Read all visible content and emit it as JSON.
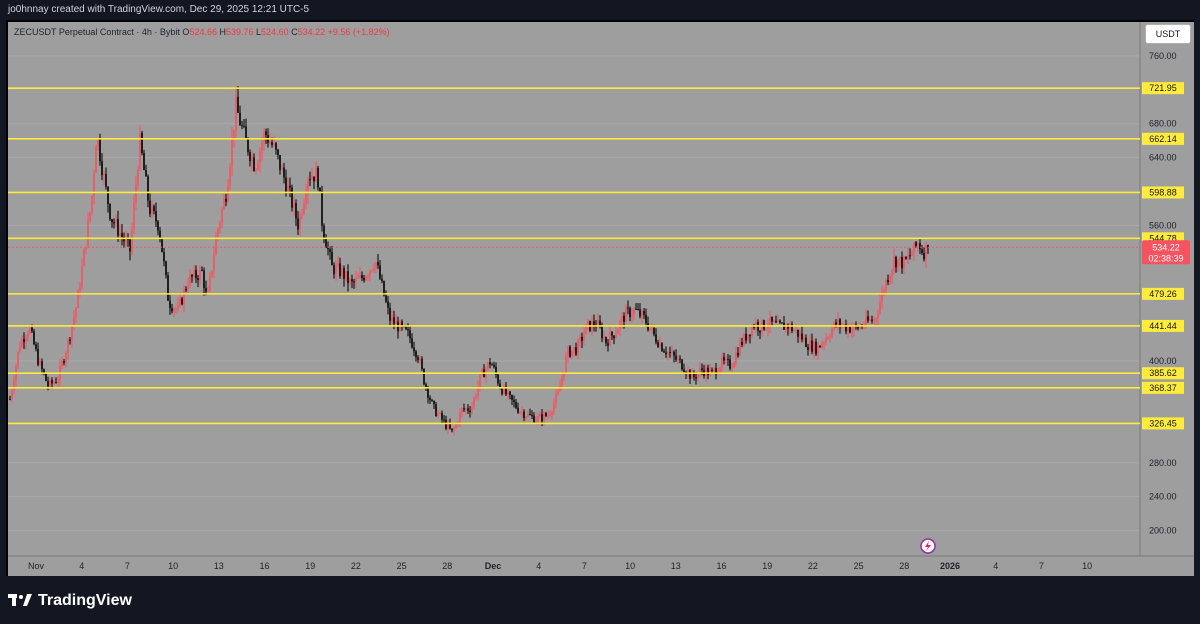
{
  "credit": "jo0hnnay created with TradingView.com, Dec 29, 2025 12:21 UTC-5",
  "legend": {
    "symbol": "ZECUSDT Perpetual Contract · 4h · Bybit",
    "o_key": "O",
    "o_val": "524.66",
    "h_key": "H",
    "h_val": "539.76",
    "l_key": "L",
    "l_val": "524.60",
    "c_key": "C",
    "c_val": "534.22",
    "change": "+9.56 (+1.82%)"
  },
  "currency_button": "USDT",
  "brand": "TradingView",
  "colors": {
    "up": "#f7525f",
    "down": "#000000",
    "level": "#ffeb3b",
    "price_tag": "#f7525f"
  },
  "chart_data": {
    "type": "candlestick",
    "y_axis": {
      "min": 170,
      "max": 800,
      "ticks": [
        200,
        240,
        280,
        400,
        560,
        640,
        680,
        760
      ],
      "tick_labels": [
        "200.00",
        "240.00",
        "280.00",
        "400.00",
        "560.00",
        "640.00",
        "680.00",
        "760.00"
      ]
    },
    "x_axis": {
      "labels": [
        "Nov",
        "4",
        "7",
        "10",
        "13",
        "16",
        "19",
        "22",
        "25",
        "28",
        "Dec",
        "4",
        "7",
        "10",
        "13",
        "16",
        "19",
        "22",
        "25",
        "28",
        "2026",
        "4",
        "7",
        "10"
      ]
    },
    "levels": [
      721.95,
      662.14,
      598.88,
      544.78,
      479.26,
      441.44,
      385.62,
      368.37,
      326.45
    ],
    "level_labels": [
      "721.95",
      "662.14",
      "598.88",
      "544.78",
      "479.26",
      "441.44",
      "385.62",
      "368.37",
      "326.45"
    ],
    "current_price": {
      "value": 534.22,
      "label": "534.22",
      "countdown": "02:38:39"
    },
    "path": [
      [
        0,
        355
      ],
      [
        2,
        420
      ],
      [
        4,
        440
      ],
      [
        6,
        398
      ],
      [
        8,
        370
      ],
      [
        10,
        380
      ],
      [
        12,
        420
      ],
      [
        14,
        470
      ],
      [
        17,
        590
      ],
      [
        18,
        670
      ],
      [
        20,
        600
      ],
      [
        21,
        570
      ],
      [
        23,
        550
      ],
      [
        25,
        530
      ],
      [
        27,
        660
      ],
      [
        29,
        580
      ],
      [
        31,
        560
      ],
      [
        33,
        470
      ],
      [
        35,
        460
      ],
      [
        37,
        495
      ],
      [
        40,
        505
      ],
      [
        41,
        470
      ],
      [
        43,
        550
      ],
      [
        45,
        600
      ],
      [
        47,
        700
      ],
      [
        49,
        660
      ],
      [
        51,
        630
      ],
      [
        53,
        670
      ],
      [
        55,
        650
      ],
      [
        58,
        600
      ],
      [
        60,
        560
      ],
      [
        62,
        620
      ],
      [
        64,
        620
      ],
      [
        65,
        560
      ],
      [
        67,
        510
      ],
      [
        69,
        505
      ],
      [
        71,
        490
      ],
      [
        73,
        497
      ],
      [
        75,
        510
      ],
      [
        76,
        520
      ],
      [
        79,
        450
      ],
      [
        81,
        440
      ],
      [
        83,
        430
      ],
      [
        85,
        405
      ],
      [
        86,
        380
      ],
      [
        88,
        345
      ],
      [
        90,
        330
      ],
      [
        92,
        315
      ],
      [
        94,
        342
      ],
      [
        96,
        345
      ],
      [
        98,
        382
      ],
      [
        100,
        400
      ],
      [
        102,
        370
      ],
      [
        104,
        355
      ],
      [
        106,
        342
      ],
      [
        108,
        335
      ],
      [
        110,
        332
      ],
      [
        112,
        337
      ],
      [
        114,
        360
      ],
      [
        116,
        410
      ],
      [
        118,
        415
      ],
      [
        120,
        440
      ],
      [
        122,
        445
      ],
      [
        124,
        423
      ],
      [
        126,
        435
      ],
      [
        128,
        455
      ],
      [
        130,
        460
      ],
      [
        132,
        450
      ],
      [
        134,
        430
      ],
      [
        136,
        415
      ],
      [
        138,
        405
      ],
      [
        140,
        395
      ],
      [
        142,
        380
      ],
      [
        144,
        390
      ],
      [
        146,
        385
      ],
      [
        148,
        398
      ],
      [
        150,
        395
      ],
      [
        152,
        420
      ],
      [
        155,
        445
      ],
      [
        156,
        440
      ],
      [
        158,
        445
      ],
      [
        160,
        440
      ],
      [
        162,
        442
      ],
      [
        164,
        432
      ],
      [
        166,
        420
      ],
      [
        168,
        415
      ],
      [
        170,
        430
      ],
      [
        172,
        445
      ],
      [
        174,
        440
      ],
      [
        176,
        438
      ],
      [
        178,
        445
      ],
      [
        180,
        450
      ],
      [
        182,
        490
      ],
      [
        184,
        520
      ],
      [
        186,
        515
      ],
      [
        188,
        530
      ],
      [
        189,
        540
      ],
      [
        190,
        528
      ],
      [
        191,
        534.22
      ]
    ]
  }
}
